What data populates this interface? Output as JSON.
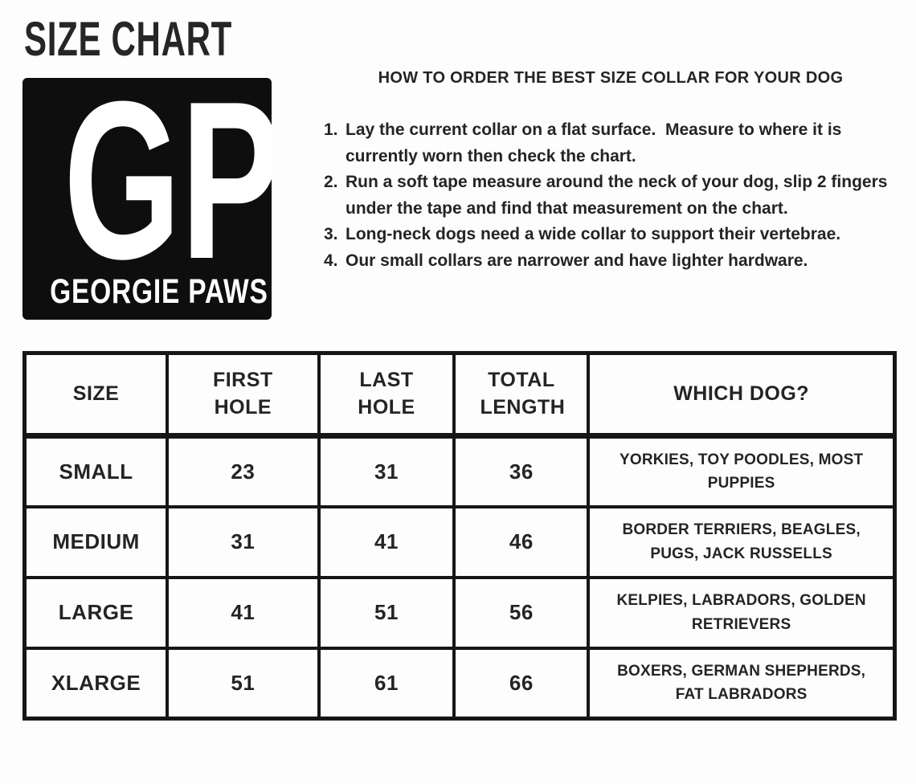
{
  "page": {
    "title": "SIZE CHART"
  },
  "logo": {
    "monogram": "GP",
    "brand": "GEORGIE PAWS",
    "bg_color": "#0e0e0e",
    "text_color": "#ffffff"
  },
  "instructions": {
    "heading": "HOW TO ORDER THE BEST SIZE COLLAR FOR YOUR DOG",
    "items": [
      {
        "number": "1.",
        "text": "Lay the current collar on a flat surface.  Measure to where it is currently worn then check the chart."
      },
      {
        "number": "2.",
        "text": "Run a soft tape measure around the neck of your dog, slip 2 fingers under the tape and find that measurement on the chart."
      },
      {
        "number": "3.",
        "text": "Long-neck dogs need a wide collar to support their vertebrae."
      },
      {
        "number": "4.",
        "text": "Our small collars are narrower and have lighter hardware."
      }
    ]
  },
  "size_table": {
    "headers": [
      "SIZE",
      "FIRST HOLE",
      "LAST HOLE",
      "TOTAL LENGTH",
      "WHICH DOG?"
    ],
    "rows": [
      {
        "size": "SMALL",
        "first_hole": "23",
        "last_hole": "31",
        "total_length": "36",
        "which_dog": "YORKIES, TOY POODLES, MOST PUPPIES"
      },
      {
        "size": "MEDIUM",
        "first_hole": "31",
        "last_hole": "41",
        "total_length": "46",
        "which_dog": "BORDER TERRIERS, BEAGLES, PUGS, JACK RUSSELLS"
      },
      {
        "size": "LARGE",
        "first_hole": "41",
        "last_hole": "51",
        "total_length": "56",
        "which_dog": "KELPIES, LABRADORS, GOLDEN RETRIEVERS"
      },
      {
        "size": "XLARGE",
        "first_hole": "51",
        "last_hole": "61",
        "total_length": "66",
        "which_dog": "BOXERS, GERMAN SHEPHERDS, FAT LABRADORS"
      }
    ]
  },
  "colors": {
    "background": "#fdfdfd",
    "text": "#242424",
    "table_border": "#161616",
    "logo_background": "#0e0e0e"
  }
}
